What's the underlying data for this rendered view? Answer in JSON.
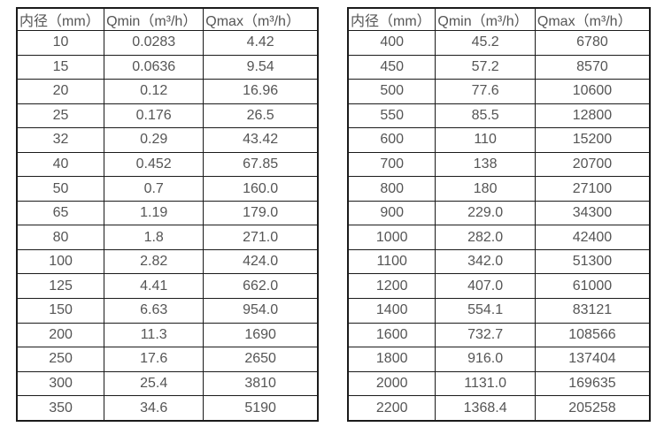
{
  "page": {
    "background_color": "#ffffff",
    "text_color": "#555555",
    "border_color": "#1b1b1b"
  },
  "tables": [
    {
      "name": "flow-spec-small-diameters",
      "headers": [
        "内径（mm）",
        "Qmin（m³/h）",
        "Qmax（m³/h）"
      ],
      "rows": [
        [
          "10",
          "0.0283",
          "4.42"
        ],
        [
          "15",
          "0.0636",
          "9.54"
        ],
        [
          "20",
          "0.12",
          "16.96"
        ],
        [
          "25",
          "0.176",
          "26.5"
        ],
        [
          "32",
          "0.29",
          "43.42"
        ],
        [
          "40",
          "0.452",
          "67.85"
        ],
        [
          "50",
          "0.7",
          "160.0"
        ],
        [
          "65",
          "1.19",
          "179.0"
        ],
        [
          "80",
          "1.8",
          "271.0"
        ],
        [
          "100",
          "2.82",
          "424.0"
        ],
        [
          "125",
          "4.41",
          "662.0"
        ],
        [
          "150",
          "6.63",
          "954.0"
        ],
        [
          "200",
          "11.3",
          "1690"
        ],
        [
          "250",
          "17.6",
          "2650"
        ],
        [
          "300",
          "25.4",
          "3810"
        ],
        [
          "350",
          "34.6",
          "5190"
        ]
      ]
    },
    {
      "name": "flow-spec-large-diameters",
      "headers": [
        "内径（mm）",
        "Qmin（m³/h）",
        "Qmax（m³/h）"
      ],
      "rows": [
        [
          "400",
          "45.2",
          "6780"
        ],
        [
          "450",
          "57.2",
          "8570"
        ],
        [
          "500",
          "77.6",
          "10600"
        ],
        [
          "550",
          "85.5",
          "12800"
        ],
        [
          "600",
          "110",
          "15200"
        ],
        [
          "700",
          "138",
          "20700"
        ],
        [
          "800",
          "180",
          "27100"
        ],
        [
          "900",
          "229.0",
          "34300"
        ],
        [
          "1000",
          "282.0",
          "42400"
        ],
        [
          "1100",
          "342.0",
          "51300"
        ],
        [
          "1200",
          "407.0",
          "61000"
        ],
        [
          "1400",
          "554.1",
          "83121"
        ],
        [
          "1600",
          "732.7",
          "108566"
        ],
        [
          "1800",
          "916.0",
          "137404"
        ],
        [
          "2000",
          "1131.0",
          "169635"
        ],
        [
          "2200",
          "1368.4",
          "205258"
        ]
      ]
    }
  ]
}
